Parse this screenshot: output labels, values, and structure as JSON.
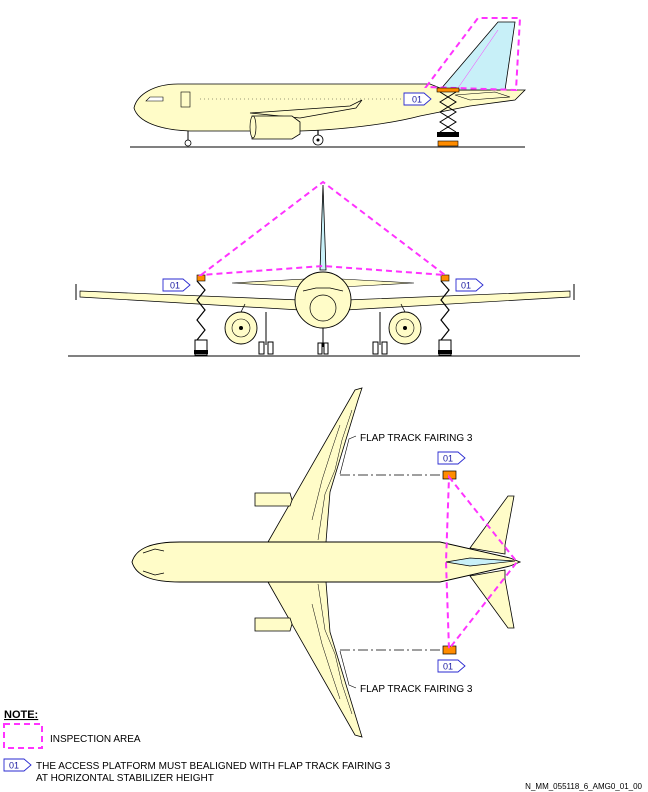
{
  "colors": {
    "fuselage": "#fffcc8",
    "fin": "#c8f0f8",
    "inspection": "#ff33ff",
    "tag_border": "#2a2ad0",
    "tag_text": "#1a1aa0",
    "platform": "#ff8c00",
    "line": "#000000"
  },
  "icons": {
    "platform": "scissor-lift-platform-icon",
    "inspection": "dashed-inspection-area-icon",
    "tag": "callout-tag-icon"
  },
  "tags": {
    "side_view": "01",
    "front_left": "01",
    "front_right": "01",
    "plan_upper": "01",
    "plan_lower": "01"
  },
  "labels": {
    "flap_track_upper": "FLAP TRACK FAIRING 3",
    "flap_track_lower": "FLAP TRACK FAIRING 3"
  },
  "note": {
    "title": "NOTE:",
    "inspection_area": "INSPECTION AREA",
    "tag": "01",
    "platform_line1": "THE ACCESS PLATFORM MUST BEALIGNED WITH FLAP TRACK FAIRING 3",
    "platform_line2": "AT HORIZONTAL STABILIZER HEIGHT"
  },
  "reference": "N_MM_055118_6_AMG0_01_00"
}
